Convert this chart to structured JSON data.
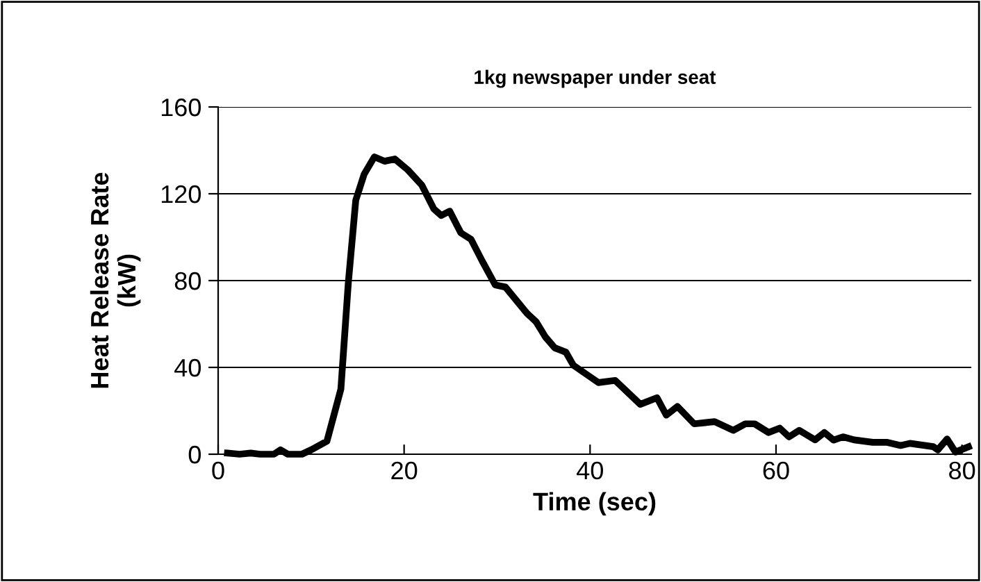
{
  "chart_data": {
    "type": "line",
    "title": "1kg newspaper under seat",
    "xlabel": "Time (sec)",
    "ylabel": "Heat Release Rate\n(kW)",
    "series": [
      {
        "color": "#000000",
        "x": [
          1,
          2.3,
          3.5,
          4.5,
          6,
          6.7,
          7.5,
          9,
          10,
          11.7,
          13.2,
          14,
          14.8,
          15.7,
          16.8,
          17.9,
          19,
          20.4,
          21.9,
          23.2,
          24,
          24.9,
          26.1,
          27.2,
          28.4,
          29.8,
          30.9,
          33.2,
          34.2,
          35.2,
          36.2,
          37.4,
          38.2,
          40.9,
          42.7,
          45.4,
          47.2,
          48.2,
          49.4,
          51.2,
          53.4,
          55.4,
          56.7,
          57.7,
          59.2,
          60.4,
          61.4,
          62.5,
          64.2,
          65.2,
          66.2,
          67.2,
          68.4,
          70.4,
          71.9,
          73.4,
          74.4,
          76.9,
          77.4,
          78.4,
          79.3,
          80.7
        ],
        "values": [
          0.5,
          0,
          0.5,
          0,
          0,
          2,
          0,
          0,
          2,
          6,
          30,
          79,
          117,
          129,
          137,
          135,
          136,
          131,
          124,
          113,
          110,
          112,
          102,
          99,
          89,
          78,
          77,
          65,
          61,
          54,
          49,
          47,
          41,
          33,
          34,
          23,
          26,
          18,
          22,
          14,
          15,
          11,
          14,
          14,
          10,
          12,
          8,
          11,
          6.6,
          10,
          6.5,
          8,
          6.6,
          5.5,
          5.5,
          4,
          5,
          3.5,
          2,
          7,
          1,
          3.4
        ]
      }
    ],
    "xlim": [
      0,
      81
    ],
    "ylim": [
      0,
      160
    ],
    "xticks": [
      0,
      20,
      40,
      60,
      80
    ],
    "yticks": [
      0,
      40,
      80,
      120,
      160
    ],
    "grid": "y",
    "legend": false,
    "marker": "none",
    "line_style": "solid"
  }
}
